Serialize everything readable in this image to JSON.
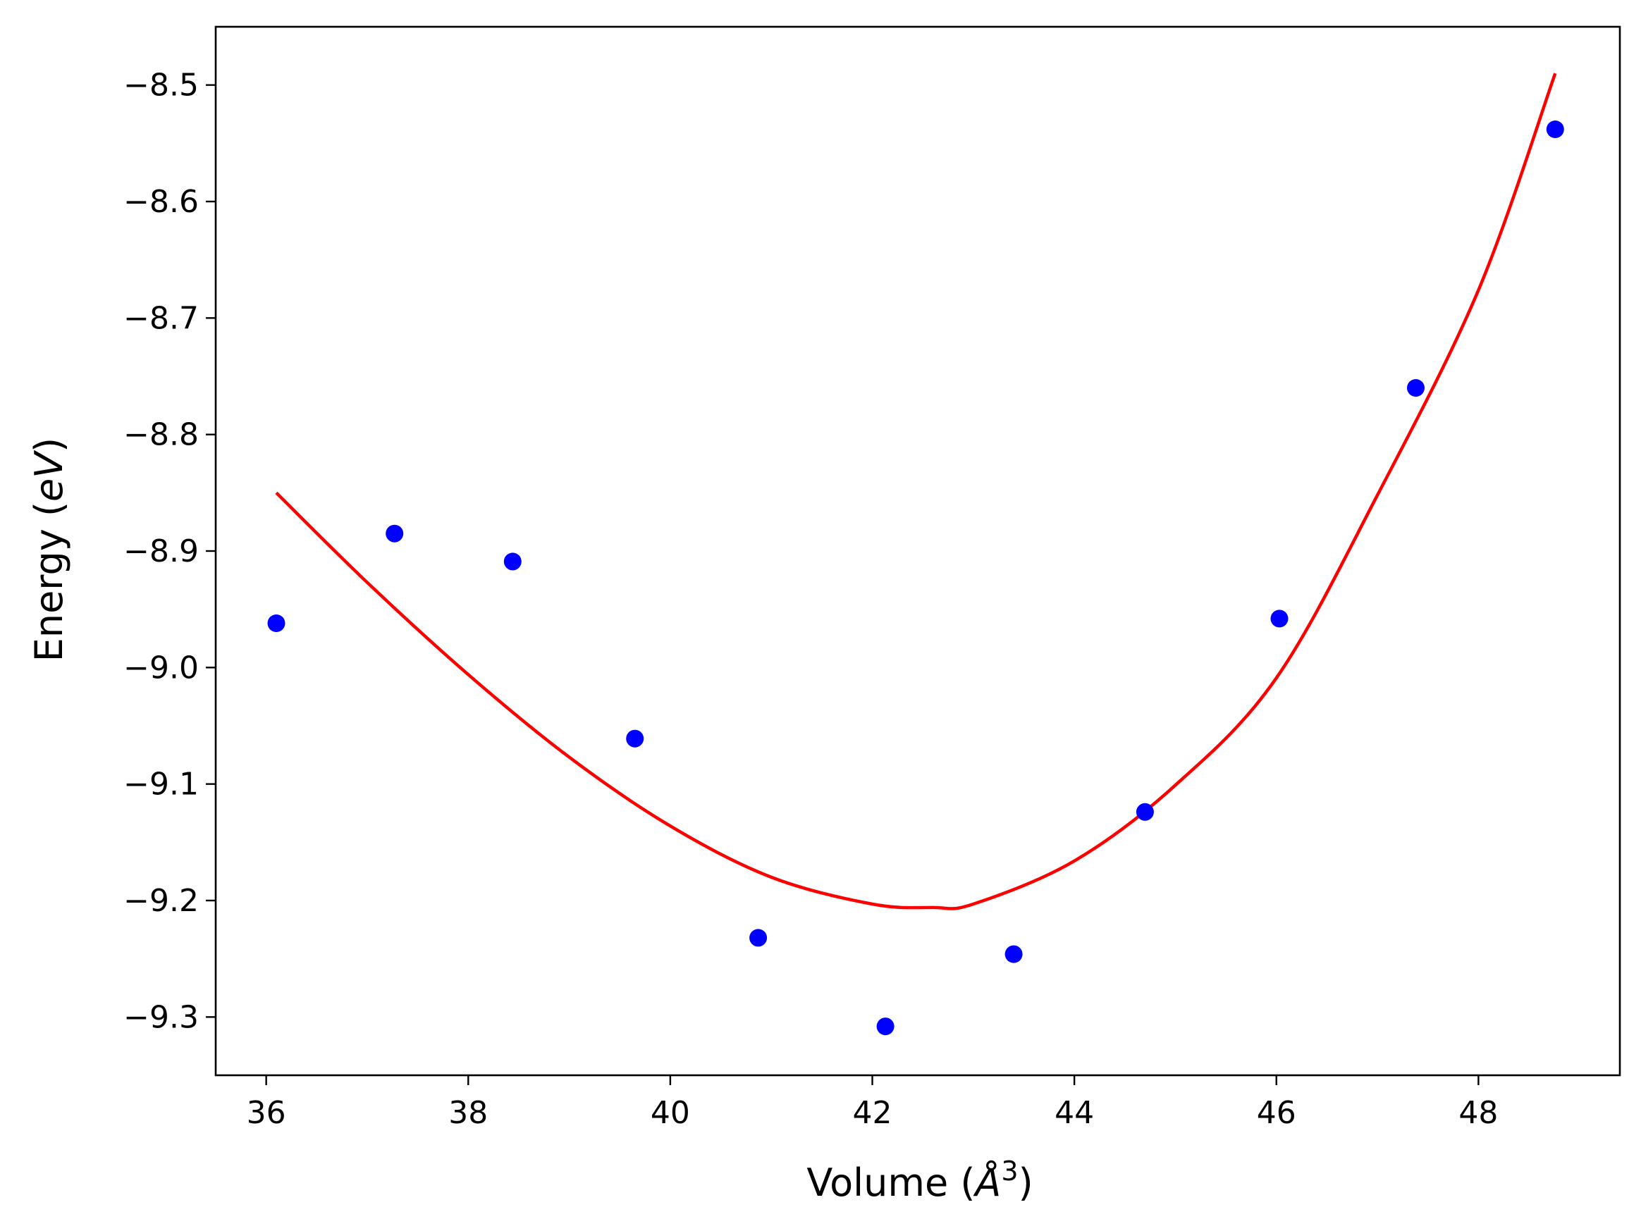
{
  "chart_data": {
    "type": "scatter",
    "xlabel": "Volume",
    "xlabel_unit_base": "Å",
    "xlabel_unit_sup": "3",
    "ylabel": "Energy",
    "ylabel_unit": "eV",
    "xlim": [
      35.5,
      49.4
    ],
    "ylim": [
      -9.35,
      -8.45
    ],
    "x_ticks": [
      36,
      38,
      40,
      42,
      44,
      46,
      48
    ],
    "y_ticks": [
      -9.3,
      -9.2,
      -9.1,
      -9.0,
      -8.9,
      -8.8,
      -8.7,
      -8.6,
      -8.5
    ],
    "grid": false,
    "legend": "none",
    "series": [
      {
        "kind": "points",
        "color": "#0000ff",
        "x": [
          36.1,
          37.27,
          38.44,
          39.65,
          40.87,
          42.13,
          43.4,
          44.7,
          46.03,
          47.38,
          48.76
        ],
        "y": [
          -8.962,
          -8.885,
          -8.909,
          -9.061,
          -9.232,
          -9.308,
          -9.246,
          -9.124,
          -8.958,
          -8.76,
          -8.538
        ]
      },
      {
        "kind": "fit-curve",
        "color": "#ff0000",
        "x": [
          36.1,
          37.0,
          38.0,
          39.0,
          40.0,
          41.0,
          42.0,
          42.6,
          43.0,
          44.0,
          45.0,
          46.0,
          47.0,
          48.0,
          48.76
        ],
        "y": [
          -8.85,
          -8.927,
          -9.006,
          -9.077,
          -9.136,
          -9.18,
          -9.203,
          -9.206,
          -9.203,
          -9.166,
          -9.101,
          -9.009,
          -8.852,
          -8.676,
          -8.49
        ]
      }
    ]
  }
}
